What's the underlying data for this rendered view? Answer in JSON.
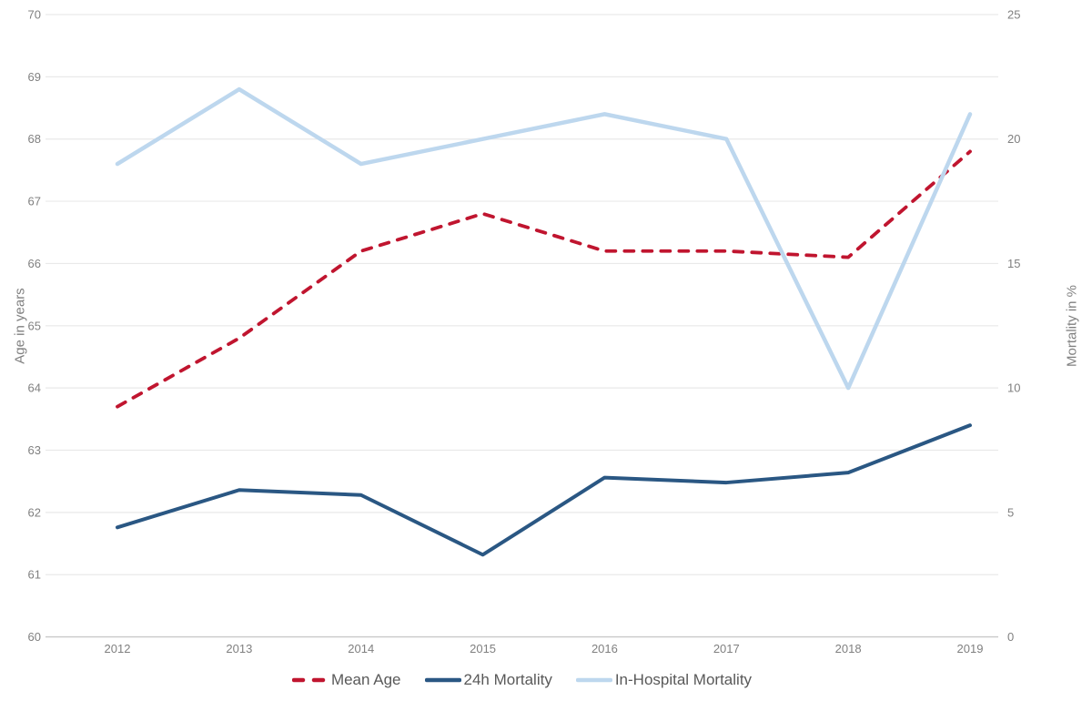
{
  "chart_data": {
    "type": "line",
    "title": "",
    "categories": [
      "2012",
      "2013",
      "2014",
      "2015",
      "2016",
      "2017",
      "2018",
      "2019"
    ],
    "xlabel": "",
    "ylabel_left": "Age in years",
    "ylabel_right": "Mortality in %",
    "axes": {
      "left": {
        "min": 60,
        "max": 70,
        "ticks": [
          60,
          61,
          62,
          63,
          64,
          65,
          66,
          67,
          68,
          69,
          70
        ]
      },
      "right": {
        "min": 0,
        "max": 25,
        "ticks": [
          0,
          5,
          10,
          15,
          20,
          25
        ]
      }
    },
    "grid": "horizontal",
    "legend_position": "bottom",
    "series": [
      {
        "name": "Mean Age",
        "axis": "left",
        "line_style": "dashed",
        "color": "#c0152f",
        "values": [
          63.7,
          64.8,
          66.2,
          66.8,
          66.2,
          66.2,
          66.1,
          67.8
        ]
      },
      {
        "name": "24h Mortality",
        "axis": "right",
        "line_style": "solid",
        "color": "#2a5783",
        "values": [
          4.4,
          5.9,
          5.7,
          3.3,
          6.4,
          6.2,
          6.6,
          8.5
        ]
      },
      {
        "name": "In-Hospital Mortality",
        "axis": "right",
        "line_style": "solid",
        "color": "#bdd7ee",
        "values": [
          19,
          22,
          19,
          20,
          21,
          20,
          10,
          21
        ]
      }
    ],
    "colors": {
      "background": "#ffffff",
      "grid": "#e9e9e9",
      "axis_line": "#c9c9c9",
      "tick_label": "#808080",
      "axis_title": "#808080",
      "legend_text": "#595959"
    }
  }
}
